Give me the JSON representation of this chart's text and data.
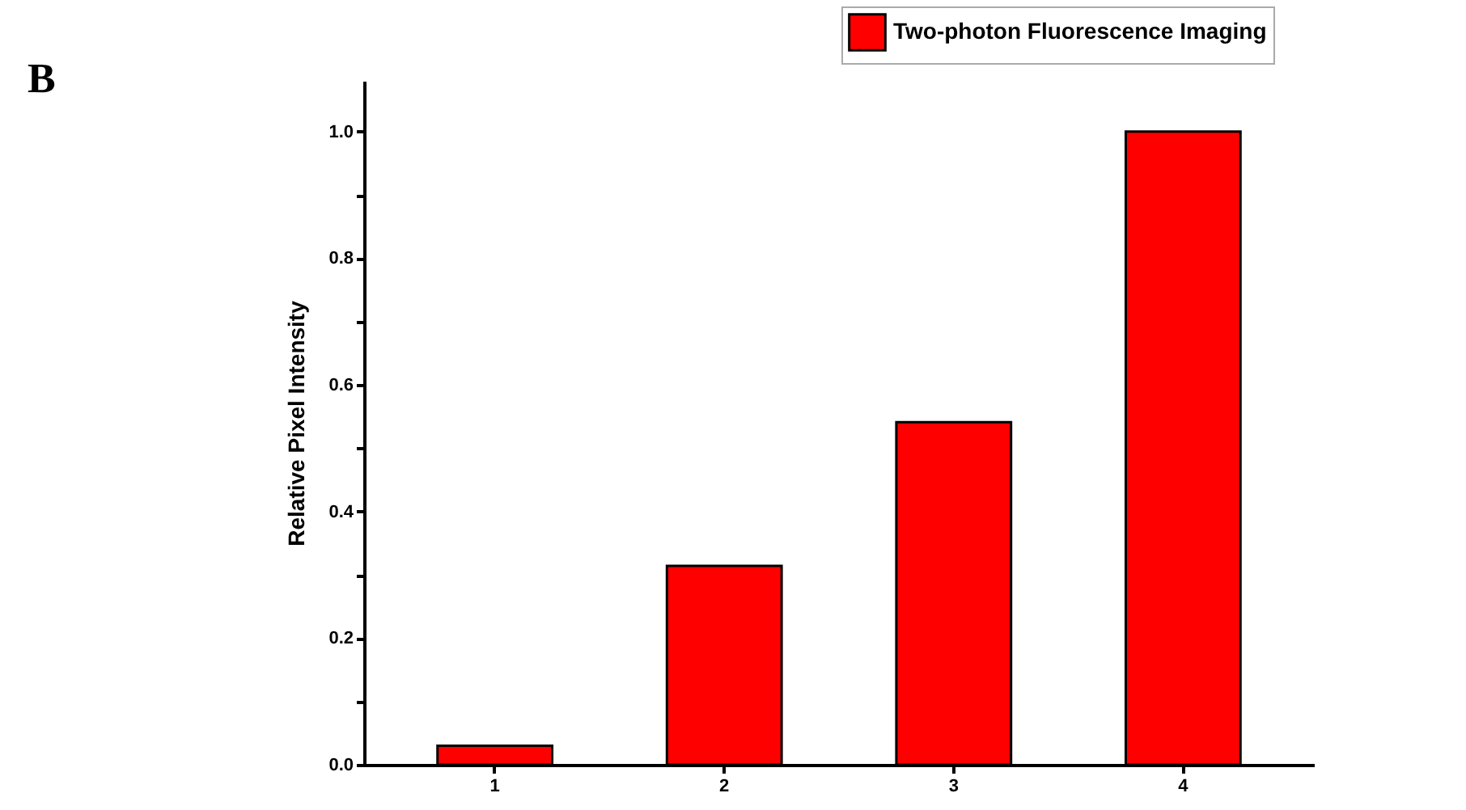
{
  "chart_data": {
    "type": "bar",
    "ylabel": "Relative Pixel Intensity",
    "categories": [
      "1",
      "2",
      "3",
      "4"
    ],
    "series": [
      {
        "name": "Two-photon Fluorescence Imaging",
        "color": "#ff0000",
        "values": [
          0.03,
          0.314,
          0.541,
          1.0
        ]
      }
    ],
    "ylim": [
      0,
      1.08
    ],
    "yticks": [
      {
        "value": 0,
        "label": "0.0"
      },
      {
        "value": 0.1,
        "label": null
      },
      {
        "value": 0.2,
        "label": "0.2"
      },
      {
        "value": 0.3,
        "label": null
      },
      {
        "value": 0.4,
        "label": "0.4"
      },
      {
        "value": 0.5,
        "label": null
      },
      {
        "value": 0.6,
        "label": "0.6"
      },
      {
        "value": 0.7,
        "label": null
      },
      {
        "value": 0.8,
        "label": "0.8"
      },
      {
        "value": 0.9,
        "label": null
      },
      {
        "value": 1.0,
        "label": "1.0"
      }
    ],
    "annotations": [
      "B"
    ],
    "legend": "top right",
    "grid": false
  }
}
